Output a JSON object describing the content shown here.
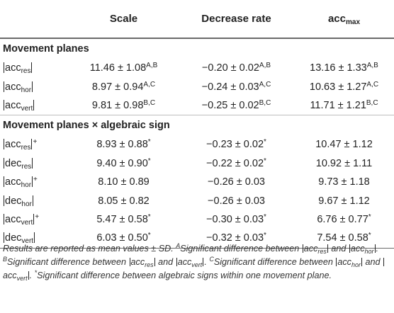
{
  "table": {
    "headers": [
      {
        "text": "",
        "sub": ""
      },
      {
        "text": "Scale",
        "sub": ""
      },
      {
        "text": "Decrease rate",
        "sub": ""
      },
      {
        "text": "acc",
        "sub": "max"
      }
    ],
    "sections": [
      {
        "title": "Movement planes",
        "rows": [
          {
            "label": {
              "base": "acc",
              "sub": "res",
              "sign": ""
            },
            "cells": [
              {
                "val": "11.46 ± 1.08",
                "sup": "A,B"
              },
              {
                "val": "−0.20 ± 0.02",
                "sup": "A,B"
              },
              {
                "val": "13.16 ± 1.33",
                "sup": "A,B"
              }
            ]
          },
          {
            "label": {
              "base": "acc",
              "sub": "hor",
              "sign": ""
            },
            "cells": [
              {
                "val": "8.97 ± 0.94",
                "sup": "A,C"
              },
              {
                "val": "−0.24 ± 0.03",
                "sup": "A,C"
              },
              {
                "val": "10.63 ± 1.27",
                "sup": "A,C"
              }
            ]
          },
          {
            "label": {
              "base": "acc",
              "sub": "vert",
              "sign": ""
            },
            "cells": [
              {
                "val": "9.81 ± 0.98",
                "sup": "B,C"
              },
              {
                "val": "−0.25 ± 0.02",
                "sup": "B,C"
              },
              {
                "val": "11.71 ± 1.21",
                "sup": "B,C"
              }
            ]
          }
        ]
      },
      {
        "title": "Movement planes × algebraic sign",
        "rows": [
          {
            "label": {
              "base": "acc",
              "sub": "res",
              "sign": "+"
            },
            "cells": [
              {
                "val": "8.93 ± 0.88",
                "sup": "*"
              },
              {
                "val": "−0.23 ± 0.02",
                "sup": "*"
              },
              {
                "val": "10.47 ± 1.12",
                "sup": ""
              }
            ]
          },
          {
            "label": {
              "base": "dec",
              "sub": "res",
              "sign": ""
            },
            "cells": [
              {
                "val": "9.40 ± 0.90",
                "sup": "*"
              },
              {
                "val": "−0.22 ± 0.02",
                "sup": "*"
              },
              {
                "val": "10.92 ± 1.11",
                "sup": ""
              }
            ]
          },
          {
            "label": {
              "base": "acc",
              "sub": "hor",
              "sign": "+"
            },
            "cells": [
              {
                "val": "8.10 ± 0.89",
                "sup": ""
              },
              {
                "val": "−0.26 ± 0.03",
                "sup": ""
              },
              {
                "val": "9.73 ± 1.18",
                "sup": ""
              }
            ]
          },
          {
            "label": {
              "base": "dec",
              "sub": "hor",
              "sign": ""
            },
            "cells": [
              {
                "val": "8.05 ± 0.82",
                "sup": ""
              },
              {
                "val": "−0.26 ± 0.03",
                "sup": ""
              },
              {
                "val": "9.67 ± 1.12",
                "sup": ""
              }
            ]
          },
          {
            "label": {
              "base": "acc",
              "sub": "vert",
              "sign": "+"
            },
            "cells": [
              {
                "val": "5.47 ± 0.58",
                "sup": "*"
              },
              {
                "val": "−0.30 ± 0.03",
                "sup": "*"
              },
              {
                "val": "6.76 ± 0.77",
                "sup": "*"
              }
            ]
          },
          {
            "label": {
              "base": "dec",
              "sub": "vert",
              "sign": ""
            },
            "cells": [
              {
                "val": "6.03 ± 0.50",
                "sup": "*"
              },
              {
                "val": "−0.32 ± 0.03",
                "sup": "*"
              },
              {
                "val": "7.54 ± 0.58",
                "sup": "*"
              }
            ]
          }
        ]
      }
    ]
  },
  "footnote": {
    "intro": "Results are reported as mean values ± SD.",
    "items": [
      {
        "mark": "A",
        "text": "Significant difference between",
        "a": {
          "base": "acc",
          "sub": "res"
        },
        "b": {
          "base": "acc",
          "sub": "hor"
        }
      },
      {
        "mark": "B",
        "text": "Significant difference between",
        "a": {
          "base": "acc",
          "sub": "res"
        },
        "b": {
          "base": "acc",
          "sub": "vert"
        }
      },
      {
        "mark": "C",
        "text": "Significant difference between",
        "a": {
          "base": "acc",
          "sub": "hor"
        },
        "b": {
          "base": "acc",
          "sub": "vert"
        }
      }
    ],
    "star": {
      "mark": "*",
      "text": "Significant difference between algebraic signs within one movement plane."
    },
    "conj": "and"
  }
}
